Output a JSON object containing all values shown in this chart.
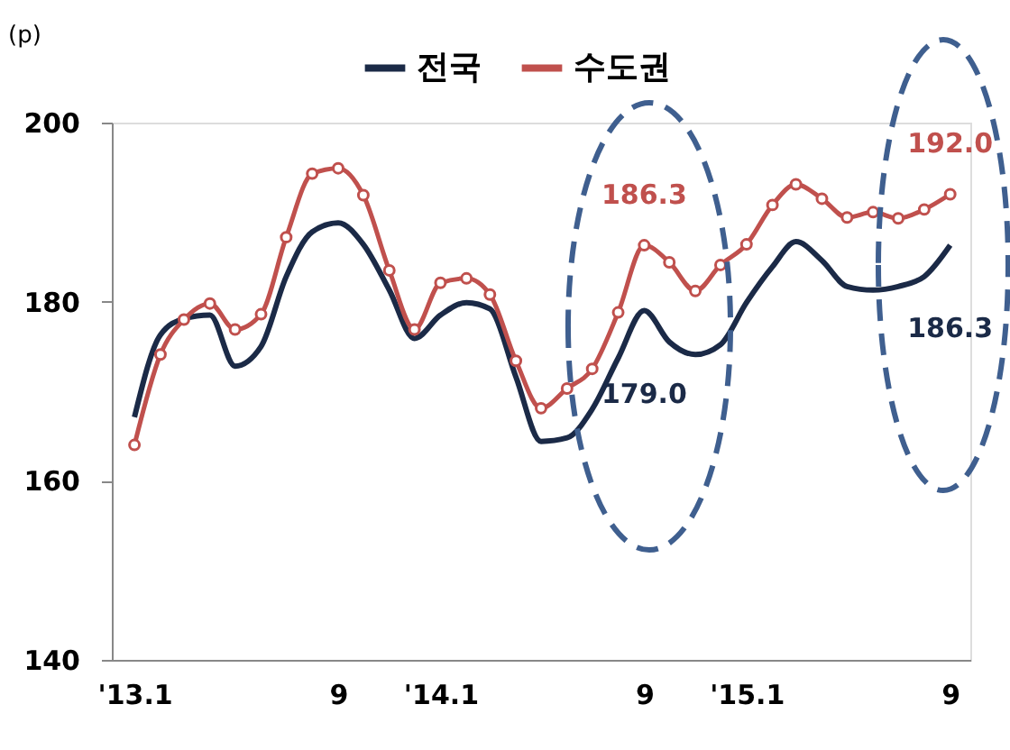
{
  "chart_data": {
    "type": "line",
    "ylabel": "(p)",
    "x": [
      "2013-01",
      "2013-02",
      "2013-03",
      "2013-04",
      "2013-05",
      "2013-06",
      "2013-07",
      "2013-08",
      "2013-09",
      "2013-10",
      "2013-11",
      "2013-12",
      "2014-01",
      "2014-02",
      "2014-03",
      "2014-04",
      "2014-05",
      "2014-06",
      "2014-07",
      "2014-08",
      "2014-09",
      "2014-10",
      "2014-11",
      "2014-12",
      "2015-01",
      "2015-02",
      "2015-03",
      "2015-04",
      "2015-05",
      "2015-06",
      "2015-07",
      "2015-08",
      "2015-09"
    ],
    "series": [
      {
        "name": "전국",
        "color": "#1b2a47",
        "marker": "none",
        "values": [
          167.1,
          176.3,
          178.1,
          178.5,
          172.8,
          175.0,
          182.8,
          187.8,
          188.8,
          186.4,
          181.3,
          175.9,
          178.5,
          179.9,
          179.2,
          171.6,
          164.4,
          164.8,
          168.0,
          173.7,
          179.0,
          175.5,
          174.1,
          175.2,
          179.9,
          183.9,
          186.7,
          184.6,
          181.7,
          181.3,
          181.7,
          182.8,
          186.3
        ]
      },
      {
        "name": "수도권",
        "color": "#c0504d",
        "marker": "circle",
        "values": [
          164.0,
          174.1,
          178.0,
          179.8,
          176.9,
          178.6,
          187.2,
          194.3,
          194.9,
          191.9,
          183.5,
          176.9,
          182.1,
          182.6,
          180.8,
          173.4,
          168.1,
          170.3,
          172.5,
          178.8,
          186.3,
          184.4,
          181.2,
          184.1,
          186.4,
          190.8,
          193.1,
          191.5,
          189.4,
          190.0,
          189.3,
          190.3,
          192.0
        ]
      }
    ],
    "xlim": [
      "2012-12-05",
      "2015-09-25"
    ],
    "xticks": [
      {
        "value": "2013-01",
        "label": "'13.1"
      },
      {
        "value": "2013-09",
        "label": "9"
      },
      {
        "value": "2014-01",
        "label": "'14.1"
      },
      {
        "value": "2014-09",
        "label": "9"
      },
      {
        "value": "2015-01",
        "label": "'15.1"
      },
      {
        "value": "2015-09",
        "label": "9"
      }
    ],
    "ylim": [
      140,
      200
    ],
    "yticks": [
      140,
      160,
      180,
      200
    ],
    "annotations": [
      {
        "text": "186.3",
        "x": "2014-09",
        "y": 186.3
      },
      {
        "text": "179.0",
        "x": "2014-09",
        "y": 179.0
      },
      {
        "text": "192.0",
        "x": "2015-09",
        "y": 192.0
      },
      {
        "text": "186.3",
        "x": "2015-09",
        "y": 186.3
      }
    ],
    "legend": "top",
    "grid": false
  }
}
